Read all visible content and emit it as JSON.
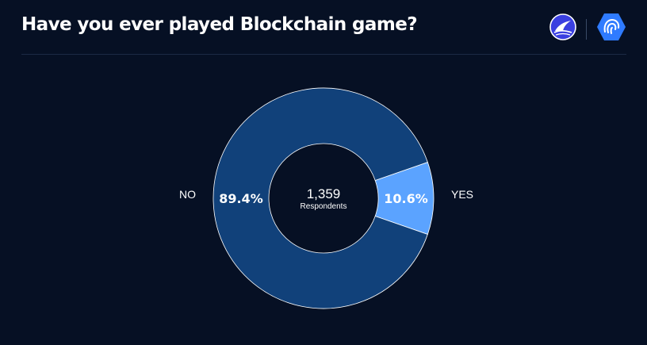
{
  "header": {
    "title": "Have you ever played Blockchain game?",
    "logos": [
      {
        "icon": "wave-shark-logo-icon",
        "color": "#3a3fe0"
      },
      {
        "icon": "fingerprint-hexagon-logo-icon",
        "color": "#2f7bff"
      }
    ]
  },
  "chart_data": {
    "type": "pie",
    "variant": "donut",
    "categories": [
      "NO",
      "YES"
    ],
    "values": [
      89.4,
      10.6
    ],
    "value_labels": [
      "89.4%",
      "10.6%"
    ],
    "colors": [
      "#11417a",
      "#5ba3ff"
    ],
    "total": {
      "value": "1,359",
      "label": "Respondents"
    },
    "title": "Have you ever played Blockchain game?",
    "legend": "none"
  },
  "colors": {
    "background": "#061024",
    "divider": "#1b2a44",
    "text": "#ffffff"
  }
}
